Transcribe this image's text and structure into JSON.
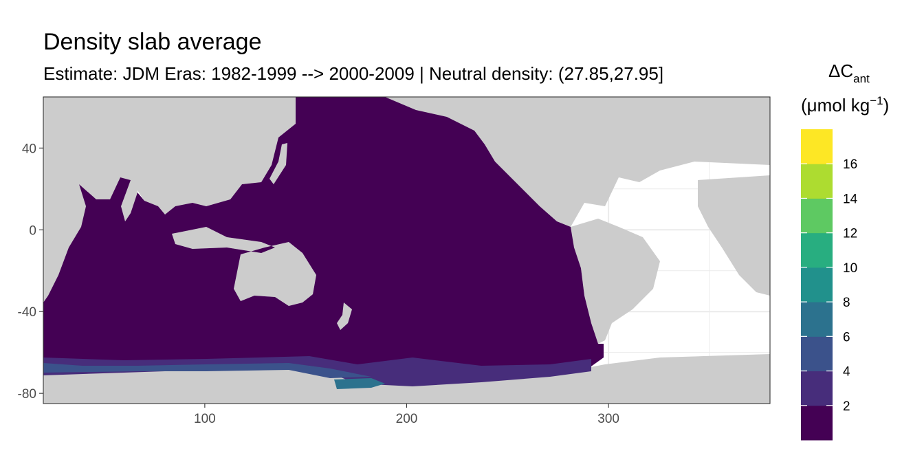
{
  "chart_data": {
    "type": "heatmap",
    "title": "Density slab average",
    "subtitle": "Estimate: JDM Eras: 1982-1999 --> 2000-2009 | Neutral density: (27.85,27.95]",
    "xlabel": "",
    "ylabel": "",
    "xlim": [
      20,
      380
    ],
    "ylim": [
      -85,
      65
    ],
    "x_ticks": [
      100,
      200,
      300
    ],
    "y_ticks": [
      40,
      0,
      -40,
      -80
    ],
    "grid": true,
    "background_land_color": "#cccccc",
    "legend": {
      "title_main": "ΔC",
      "title_sub": "ant",
      "unit_main": "(μmol kg",
      "unit_sup": "−1",
      "unit_end": ")",
      "placement": "right",
      "breaks": [
        2,
        4,
        6,
        8,
        10,
        12,
        14,
        16
      ],
      "colors": [
        "#440154",
        "#472d7b",
        "#3b528b",
        "#2c728e",
        "#21918c",
        "#28ae80",
        "#5ec962",
        "#addc30",
        "#fde725"
      ]
    },
    "value_summary": {
      "dominant_bin": "0-2",
      "southern_ocean_band_bins": [
        "2-4",
        "4-6",
        "6-8"
      ]
    }
  }
}
